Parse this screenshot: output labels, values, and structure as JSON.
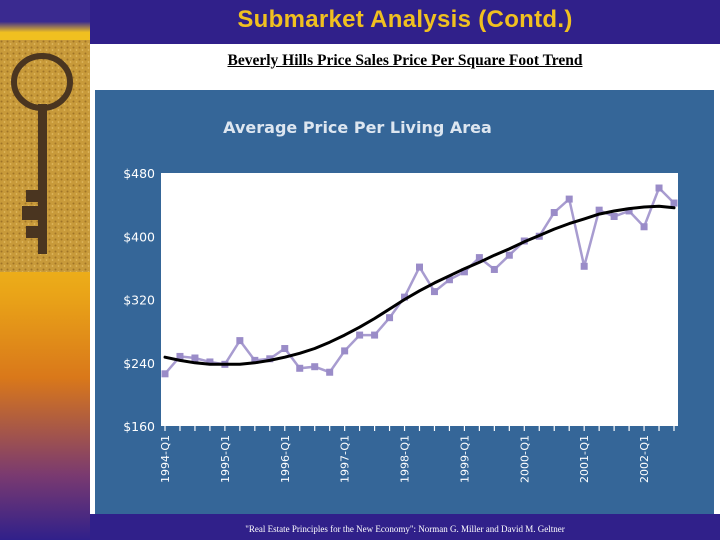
{
  "slide": {
    "title": "Submarket Analysis (Contd.)",
    "subtitle": "Beverly Hills Price Sales Price Per Square Foot Trend",
    "footer": "\"Real Estate Principles for the New Economy\": Norman G. Miller and David M. Geltner"
  },
  "colors": {
    "panel": "#356698",
    "series": "#a89cd0",
    "trend": "#000000",
    "title_text": "#f0c020"
  },
  "chart_data": {
    "type": "line",
    "title": "Average Price Per Living Area",
    "xlabel": "",
    "ylabel": "",
    "ylim": [
      160,
      480
    ],
    "yticks": [
      "$480",
      "$400",
      "$320",
      "$240",
      "$160"
    ],
    "ytick_values": [
      480,
      400,
      320,
      240,
      160
    ],
    "xticks": [
      "1994-Q1",
      "1995-Q1",
      "1996-Q1",
      "1997-Q1",
      "1998-Q1",
      "1999-Q1",
      "2000-Q1",
      "2001-Q1",
      "2002-Q1"
    ],
    "grid": false,
    "legend": "none",
    "categories": [
      "1994-Q1",
      "1994-Q2",
      "1994-Q3",
      "1994-Q4",
      "1995-Q1",
      "1995-Q2",
      "1995-Q3",
      "1995-Q4",
      "1996-Q1",
      "1996-Q2",
      "1996-Q3",
      "1996-Q4",
      "1997-Q1",
      "1997-Q2",
      "1997-Q3",
      "1997-Q4",
      "1998-Q1",
      "1998-Q2",
      "1998-Q3",
      "1998-Q4",
      "1999-Q1",
      "1999-Q2",
      "1999-Q3",
      "1999-Q4",
      "2000-Q1",
      "2000-Q2",
      "2000-Q3",
      "2000-Q4",
      "2001-Q1",
      "2001-Q2",
      "2001-Q3",
      "2001-Q4",
      "2002-Q1",
      "2002-Q2",
      "2002-Q3"
    ],
    "series": [
      {
        "values": [
          226,
          248,
          246,
          241,
          238,
          268,
          243,
          245,
          258,
          233,
          235,
          228,
          255,
          275,
          275,
          297,
          323,
          361,
          330,
          345,
          355,
          373,
          358,
          376,
          394,
          400,
          430,
          447,
          362,
          433,
          425,
          432,
          412,
          461,
          442
        ]
      },
      {
        "values": [
          247,
          243,
          240,
          238,
          238,
          238,
          240,
          243,
          247,
          252,
          258,
          266,
          275,
          285,
          296,
          308,
          320,
          331,
          341,
          350,
          359,
          367,
          376,
          384,
          393,
          401,
          409,
          416,
          422,
          428,
          432,
          435,
          437,
          438,
          436
        ]
      }
    ]
  }
}
